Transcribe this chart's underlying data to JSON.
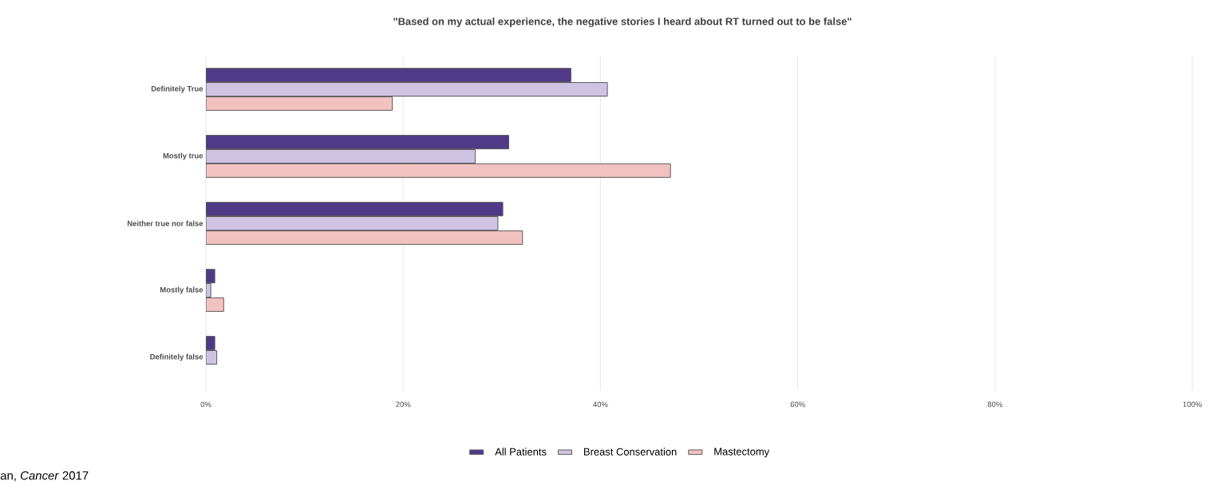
{
  "chart_data": {
    "type": "bar",
    "orientation": "horizontal",
    "title": "\"Based on my actual experience, the negative stories I heard  about RT turned out to be false\"",
    "categories": [
      "Definitely True",
      "Mostly true",
      "Neither true nor false",
      "Mostly false",
      "Definitely false"
    ],
    "series": [
      {
        "name": "All Patients",
        "color": "#4e3a86",
        "values": [
          37,
          30.7,
          30.1,
          0.9,
          0.9
        ]
      },
      {
        "name": "Breast Conservation",
        "color": "#cfc3e3",
        "values": [
          40.7,
          27.3,
          29.6,
          0.5,
          1.1
        ]
      },
      {
        "name": "Mastectomy",
        "color": "#f2c2c0",
        "values": [
          18.9,
          47.1,
          32.1,
          1.8,
          null
        ]
      }
    ],
    "xlim": [
      0,
      100
    ],
    "xticks": [
      {
        "value": 0,
        "label": "0%"
      },
      {
        "value": 20,
        "label": "20%"
      },
      {
        "value": 40,
        "label": "40%"
      },
      {
        "value": 60,
        "label": "60%"
      },
      {
        "value": 80,
        "label": "80%"
      },
      {
        "value": 100,
        "label": "100%"
      }
    ],
    "grid": "x",
    "legend": "bottom",
    "annotations": [
      "an, *Cancer* 2017"
    ]
  }
}
